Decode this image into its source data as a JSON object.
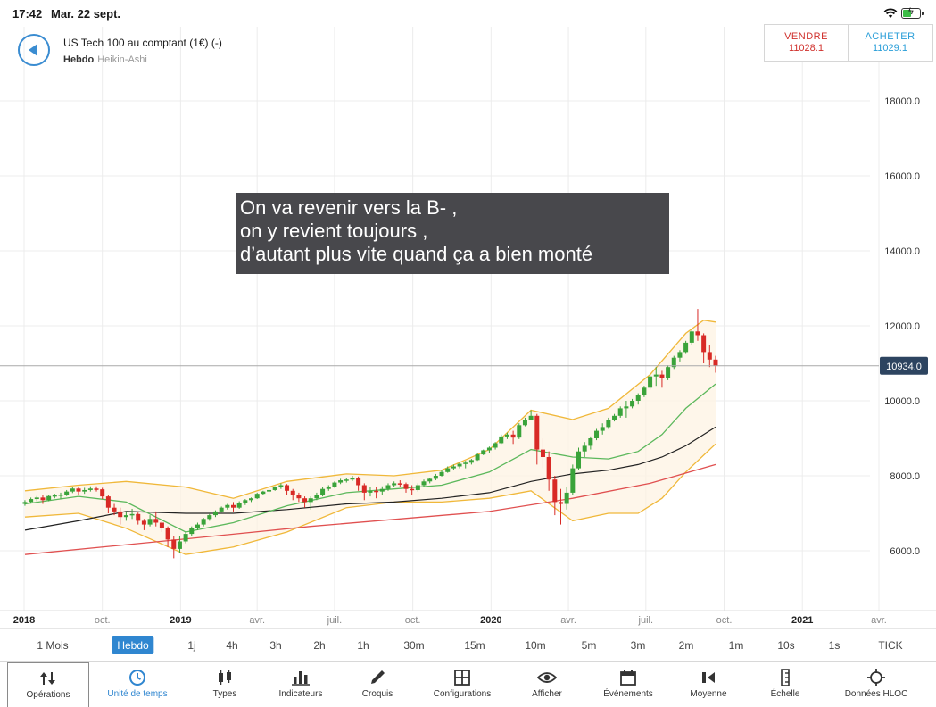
{
  "status_bar": {
    "time": "17:42",
    "date": "Mar. 22 sept."
  },
  "header": {
    "instrument": "US Tech 100 au comptant (1€) (-)",
    "timeframe": "Hebdo",
    "chart_type": "Heikin-Ashi"
  },
  "trade": {
    "sell_label": "VENDRE",
    "sell_price": "11028.1",
    "buy_label": "ACHETER",
    "buy_price": "11029.1"
  },
  "annotation": {
    "lines": [
      "On va revenir vers la B- ,",
      "on y revient toujours ,",
      "d’autant plus vite quand ça a bien monté"
    ]
  },
  "timeframes": {
    "items": [
      "1 Mois",
      "Hebdo",
      "1j",
      "4h",
      "3h",
      "2h",
      "1h",
      "30m",
      "15m",
      "10m",
      "5m",
      "3m",
      "2m",
      "1m",
      "10s",
      "1s",
      "TICK"
    ],
    "selected": "Hebdo"
  },
  "toolbar": {
    "items": [
      {
        "label": "Opérations",
        "icon": "sort-arrows-icon"
      },
      {
        "label": "Unité de temps",
        "icon": "clock-icon"
      },
      {
        "label": "Types",
        "icon": "candlestick-icon"
      },
      {
        "label": "Indicateurs",
        "icon": "bar-chart-icon"
      },
      {
        "label": "Croquis",
        "icon": "pencil-icon"
      },
      {
        "label": "Configurations",
        "icon": "layout-icon"
      },
      {
        "label": "Afficher",
        "icon": "eye-icon"
      },
      {
        "label": "Événements",
        "icon": "calendar-icon"
      },
      {
        "label": "Moyenne",
        "icon": "speaker-icon"
      },
      {
        "label": "Échelle",
        "icon": "ruler-icon"
      },
      {
        "label": "Données HLOC",
        "icon": "crosshair-icon"
      }
    ],
    "selected": "Unité de temps"
  },
  "colors": {
    "bull": "#3aa33a",
    "bear": "#d82a26",
    "accent": "#2f86d0",
    "band": "#f0b83a",
    "ma_mid": "#5cb85c",
    "ma_long": "#222222",
    "ma_trend": "#e05050"
  },
  "chart_data": {
    "type": "candlestick",
    "chart_style": "Heikin-Ashi",
    "ylim": [
      4800,
      19000
    ],
    "y_ticks": [
      "18000.0",
      "16000.0",
      "14000.0",
      "12000.0",
      "10000.0",
      "8000.0",
      "6000.0"
    ],
    "y_tick_values": [
      18000,
      16000,
      14000,
      12000,
      10000,
      8000,
      6000
    ],
    "x_tick_labels": [
      "2018",
      "oct.",
      "2019",
      "avr.",
      "juil.",
      "oct.",
      "2020",
      "avr.",
      "juil.",
      "oct.",
      "2021",
      "avr."
    ],
    "x_tick_dates": [
      "2018-07-01",
      "2018-10-01",
      "2019-01-01",
      "2019-04-01",
      "2019-07-01",
      "2019-10-01",
      "2020-01-01",
      "2020-04-01",
      "2020-07-01",
      "2020-10-01",
      "2021-01-01",
      "2021-04-01"
    ],
    "bold_x_ticks": [
      "2018",
      "2019",
      "2020",
      "2021"
    ],
    "last_price": 10934.0,
    "last_price_label": "10934.0",
    "candles": [
      [
        "2018-07-02",
        7250,
        7350,
        7200,
        7300
      ],
      [
        "2018-07-09",
        7300,
        7420,
        7260,
        7380
      ],
      [
        "2018-07-16",
        7380,
        7460,
        7320,
        7420
      ],
      [
        "2018-07-23",
        7420,
        7480,
        7250,
        7350
      ],
      [
        "2018-07-30",
        7350,
        7500,
        7320,
        7460
      ],
      [
        "2018-08-06",
        7460,
        7520,
        7400,
        7480
      ],
      [
        "2018-08-13",
        7480,
        7550,
        7380,
        7500
      ],
      [
        "2018-08-20",
        7500,
        7620,
        7460,
        7580
      ],
      [
        "2018-08-27",
        7580,
        7700,
        7540,
        7660
      ],
      [
        "2018-09-03",
        7660,
        7700,
        7500,
        7580
      ],
      [
        "2018-09-10",
        7580,
        7680,
        7520,
        7620
      ],
      [
        "2018-09-17",
        7620,
        7720,
        7580,
        7660
      ],
      [
        "2018-09-24",
        7660,
        7720,
        7580,
        7640
      ],
      [
        "2018-10-01",
        7640,
        7680,
        7380,
        7450
      ],
      [
        "2018-10-08",
        7450,
        7500,
        7000,
        7150
      ],
      [
        "2018-10-15",
        7150,
        7250,
        6950,
        7050
      ],
      [
        "2018-10-22",
        7050,
        7150,
        6700,
        6900
      ],
      [
        "2018-10-29",
        6900,
        7050,
        6800,
        6950
      ],
      [
        "2018-11-05",
        6950,
        7120,
        6850,
        6980
      ],
      [
        "2018-11-12",
        6980,
        7020,
        6700,
        6800
      ],
      [
        "2018-11-19",
        6800,
        6850,
        6550,
        6700
      ],
      [
        "2018-11-26",
        6700,
        6950,
        6650,
        6850
      ],
      [
        "2018-12-03",
        6850,
        7050,
        6650,
        6750
      ],
      [
        "2018-12-10",
        6750,
        6800,
        6500,
        6600
      ],
      [
        "2018-12-17",
        6600,
        6650,
        6100,
        6300
      ],
      [
        "2018-12-24",
        6300,
        6400,
        5800,
        6050
      ],
      [
        "2018-12-31",
        6050,
        6400,
        5950,
        6250
      ],
      [
        "2019-01-07",
        6250,
        6500,
        6200,
        6450
      ],
      [
        "2019-01-14",
        6450,
        6650,
        6400,
        6600
      ],
      [
        "2019-01-21",
        6600,
        6750,
        6550,
        6700
      ],
      [
        "2019-01-28",
        6700,
        6880,
        6650,
        6850
      ],
      [
        "2019-02-04",
        6850,
        6980,
        6800,
        6950
      ],
      [
        "2019-02-11",
        6950,
        7080,
        6900,
        7050
      ],
      [
        "2019-02-18",
        7050,
        7180,
        7020,
        7150
      ],
      [
        "2019-02-25",
        7150,
        7250,
        7100,
        7220
      ],
      [
        "2019-03-04",
        7220,
        7300,
        7050,
        7150
      ],
      [
        "2019-03-11",
        7150,
        7320,
        7120,
        7280
      ],
      [
        "2019-03-18",
        7280,
        7380,
        7220,
        7350
      ],
      [
        "2019-03-25",
        7350,
        7420,
        7300,
        7400
      ],
      [
        "2019-04-01",
        7400,
        7550,
        7380,
        7520
      ],
      [
        "2019-04-08",
        7520,
        7600,
        7480,
        7580
      ],
      [
        "2019-04-15",
        7580,
        7650,
        7530,
        7620
      ],
      [
        "2019-04-22",
        7620,
        7720,
        7600,
        7700
      ],
      [
        "2019-04-29",
        7700,
        7800,
        7650,
        7750
      ],
      [
        "2019-05-06",
        7750,
        7780,
        7500,
        7600
      ],
      [
        "2019-05-13",
        7600,
        7650,
        7350,
        7480
      ],
      [
        "2019-05-20",
        7480,
        7550,
        7300,
        7400
      ],
      [
        "2019-05-27",
        7400,
        7450,
        7150,
        7300
      ],
      [
        "2019-06-03",
        7300,
        7450,
        7100,
        7400
      ],
      [
        "2019-06-10",
        7400,
        7550,
        7350,
        7500
      ],
      [
        "2019-06-17",
        7500,
        7700,
        7450,
        7650
      ],
      [
        "2019-06-24",
        7650,
        7750,
        7600,
        7700
      ],
      [
        "2019-07-01",
        7700,
        7850,
        7680,
        7820
      ],
      [
        "2019-07-08",
        7820,
        7920,
        7780,
        7880
      ],
      [
        "2019-07-15",
        7880,
        7950,
        7820,
        7900
      ],
      [
        "2019-07-22",
        7900,
        8000,
        7860,
        7950
      ],
      [
        "2019-07-29",
        7950,
        7980,
        7600,
        7750
      ],
      [
        "2019-08-05",
        7750,
        7800,
        7350,
        7550
      ],
      [
        "2019-08-12",
        7550,
        7700,
        7450,
        7600
      ],
      [
        "2019-08-19",
        7600,
        7700,
        7400,
        7580
      ],
      [
        "2019-08-26",
        7580,
        7720,
        7500,
        7650
      ],
      [
        "2019-09-02",
        7650,
        7800,
        7600,
        7750
      ],
      [
        "2019-09-09",
        7750,
        7850,
        7700,
        7800
      ],
      [
        "2019-09-16",
        7800,
        7880,
        7700,
        7780
      ],
      [
        "2019-09-23",
        7780,
        7820,
        7550,
        7650
      ],
      [
        "2019-09-30",
        7650,
        7750,
        7500,
        7620
      ],
      [
        "2019-10-07",
        7620,
        7800,
        7580,
        7750
      ],
      [
        "2019-10-14",
        7750,
        7900,
        7700,
        7850
      ],
      [
        "2019-10-21",
        7850,
        7950,
        7800,
        7920
      ],
      [
        "2019-10-28",
        7920,
        8050,
        7880,
        8000
      ],
      [
        "2019-11-04",
        8000,
        8150,
        7980,
        8100
      ],
      [
        "2019-11-11",
        8100,
        8250,
        8080,
        8200
      ],
      [
        "2019-11-18",
        8200,
        8300,
        8150,
        8250
      ],
      [
        "2019-11-25",
        8250,
        8350,
        8200,
        8320
      ],
      [
        "2019-12-02",
        8320,
        8400,
        8200,
        8350
      ],
      [
        "2019-12-09",
        8350,
        8450,
        8300,
        8420
      ],
      [
        "2019-12-16",
        8420,
        8600,
        8400,
        8570
      ],
      [
        "2019-12-23",
        8570,
        8700,
        8550,
        8680
      ],
      [
        "2019-12-30",
        8680,
        8780,
        8600,
        8750
      ],
      [
        "2020-01-06",
        8750,
        8900,
        8700,
        8870
      ],
      [
        "2020-01-13",
        8870,
        9100,
        8850,
        9050
      ],
      [
        "2020-01-20",
        9050,
        9150,
        8980,
        9100
      ],
      [
        "2020-01-27",
        9100,
        9200,
        8850,
        9020
      ],
      [
        "2020-02-03",
        9020,
        9400,
        8980,
        9350
      ],
      [
        "2020-02-10",
        9350,
        9550,
        9320,
        9500
      ],
      [
        "2020-02-17",
        9500,
        9750,
        9480,
        9600
      ],
      [
        "2020-02-24",
        9600,
        9650,
        8300,
        8700
      ],
      [
        "2020-03-02",
        8700,
        9000,
        8200,
        8500
      ],
      [
        "2020-03-09",
        8500,
        8650,
        7600,
        7900
      ],
      [
        "2020-03-16",
        7900,
        8000,
        6950,
        7300
      ],
      [
        "2020-03-23",
        7300,
        7650,
        6700,
        7250
      ],
      [
        "2020-03-30",
        7250,
        7700,
        7100,
        7550
      ],
      [
        "2020-04-06",
        7550,
        8300,
        7500,
        8200
      ],
      [
        "2020-04-13",
        8200,
        8750,
        8150,
        8650
      ],
      [
        "2020-04-20",
        8650,
        8900,
        8500,
        8800
      ],
      [
        "2020-04-27",
        8800,
        9050,
        8700,
        9000
      ],
      [
        "2020-05-04",
        9000,
        9250,
        8950,
        9200
      ],
      [
        "2020-05-11",
        9200,
        9400,
        9100,
        9300
      ],
      [
        "2020-05-18",
        9300,
        9550,
        9250,
        9500
      ],
      [
        "2020-05-25",
        9500,
        9650,
        9450,
        9600
      ],
      [
        "2020-06-01",
        9600,
        9850,
        9550,
        9800
      ],
      [
        "2020-06-08",
        9800,
        10000,
        9550,
        9850
      ],
      [
        "2020-06-15",
        9850,
        10050,
        9800,
        10000
      ],
      [
        "2020-06-22",
        10000,
        10200,
        9900,
        10150
      ],
      [
        "2020-06-29",
        10150,
        10400,
        10100,
        10350
      ],
      [
        "2020-07-06",
        10350,
        10700,
        10300,
        10650
      ],
      [
        "2020-07-13",
        10650,
        10900,
        10400,
        10700
      ],
      [
        "2020-07-20",
        10700,
        10800,
        10350,
        10600
      ],
      [
        "2020-07-27",
        10600,
        10950,
        10550,
        10900
      ],
      [
        "2020-08-03",
        10900,
        11200,
        10850,
        11150
      ],
      [
        "2020-08-10",
        11150,
        11350,
        11050,
        11300
      ],
      [
        "2020-08-17",
        11300,
        11600,
        11250,
        11550
      ],
      [
        "2020-08-24",
        11550,
        11900,
        11500,
        11850
      ],
      [
        "2020-08-31",
        11850,
        12450,
        11600,
        11750
      ],
      [
        "2020-09-07",
        11750,
        11800,
        11000,
        11300
      ],
      [
        "2020-09-14",
        11300,
        11500,
        10900,
        11100
      ],
      [
        "2020-09-21",
        11100,
        11200,
        10750,
        10934
      ]
    ],
    "series": [
      {
        "name": "",
        "kind": "band_upper",
        "values": [
          [
            "2018-07-02",
            7600
          ],
          [
            "2018-09-03",
            7750
          ],
          [
            "2018-10-29",
            7850
          ],
          [
            "2019-01-07",
            7700
          ],
          [
            "2019-03-04",
            7400
          ],
          [
            "2019-05-06",
            7850
          ],
          [
            "2019-07-15",
            8050
          ],
          [
            "2019-09-09",
            8000
          ],
          [
            "2019-11-04",
            8150
          ],
          [
            "2019-12-30",
            8700
          ],
          [
            "2020-02-17",
            9750
          ],
          [
            "2020-04-06",
            9500
          ],
          [
            "2020-05-18",
            9800
          ],
          [
            "2020-07-06",
            10700
          ],
          [
            "2020-08-17",
            11800
          ],
          [
            "2020-09-07",
            12150
          ],
          [
            "2020-09-21",
            12100
          ]
        ]
      },
      {
        "name": "",
        "kind": "band_lower",
        "values": [
          [
            "2018-07-02",
            6900
          ],
          [
            "2018-09-03",
            7000
          ],
          [
            "2018-10-29",
            6600
          ],
          [
            "2019-01-07",
            5900
          ],
          [
            "2019-03-04",
            6100
          ],
          [
            "2019-05-06",
            6500
          ],
          [
            "2019-07-15",
            7150
          ],
          [
            "2019-09-09",
            7300
          ],
          [
            "2019-11-04",
            7300
          ],
          [
            "2019-12-30",
            7400
          ],
          [
            "2020-02-17",
            7600
          ],
          [
            "2020-04-06",
            6800
          ],
          [
            "2020-05-18",
            7000
          ],
          [
            "2020-06-22",
            7000
          ],
          [
            "2020-07-20",
            7400
          ],
          [
            "2020-08-17",
            8100
          ],
          [
            "2020-09-21",
            8850
          ]
        ]
      },
      {
        "name": "",
        "kind": "ma_mid",
        "values": [
          [
            "2018-07-02",
            7250
          ],
          [
            "2018-09-03",
            7450
          ],
          [
            "2018-10-29",
            7300
          ],
          [
            "2019-01-07",
            6500
          ],
          [
            "2019-03-04",
            6750
          ],
          [
            "2019-05-06",
            7200
          ],
          [
            "2019-07-15",
            7550
          ],
          [
            "2019-09-09",
            7650
          ],
          [
            "2019-11-04",
            7750
          ],
          [
            "2019-12-30",
            8100
          ],
          [
            "2020-02-17",
            8700
          ],
          [
            "2020-04-06",
            8500
          ],
          [
            "2020-05-18",
            8450
          ],
          [
            "2020-06-22",
            8650
          ],
          [
            "2020-07-20",
            9100
          ],
          [
            "2020-08-17",
            9800
          ],
          [
            "2020-09-21",
            10450
          ]
        ]
      },
      {
        "name": "",
        "kind": "ma_long",
        "values": [
          [
            "2018-07-02",
            6550
          ],
          [
            "2018-09-03",
            6800
          ],
          [
            "2018-10-29",
            7050
          ],
          [
            "2019-01-07",
            7000
          ],
          [
            "2019-03-04",
            7000
          ],
          [
            "2019-05-06",
            7100
          ],
          [
            "2019-07-15",
            7250
          ],
          [
            "2019-09-09",
            7300
          ],
          [
            "2019-11-04",
            7400
          ],
          [
            "2019-12-30",
            7550
          ],
          [
            "2020-02-17",
            7850
          ],
          [
            "2020-04-06",
            8050
          ],
          [
            "2020-05-18",
            8150
          ],
          [
            "2020-06-22",
            8300
          ],
          [
            "2020-07-20",
            8500
          ],
          [
            "2020-08-17",
            8800
          ],
          [
            "2020-09-21",
            9300
          ]
        ]
      },
      {
        "name": "",
        "kind": "ma_trend",
        "values": [
          [
            "2018-07-02",
            5900
          ],
          [
            "2018-12-31",
            6300
          ],
          [
            "2019-06-03",
            6650
          ],
          [
            "2019-12-30",
            7050
          ],
          [
            "2020-04-06",
            7400
          ],
          [
            "2020-07-06",
            7800
          ],
          [
            "2020-09-21",
            8300
          ]
        ]
      }
    ]
  }
}
